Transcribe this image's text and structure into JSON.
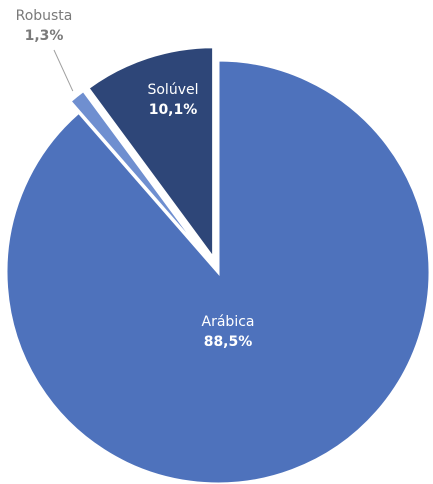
{
  "chart_data": {
    "type": "pie",
    "title": "",
    "slices": [
      {
        "label": "Arábica",
        "value": 88.5,
        "value_label": "88,5%",
        "color": "#4e72bc",
        "label_color": "#ffffff",
        "explode": false,
        "leader_line": false
      },
      {
        "label": "Robusta",
        "value": 1.3,
        "value_label": "1,3%",
        "color": "#6f8fd0",
        "label_color": "#7a7a7a",
        "explode": true,
        "leader_line": true
      },
      {
        "label": "Solúvel",
        "value": 10.1,
        "value_label": "10,1%",
        "color": "#2e4678",
        "label_color": "#ffffff",
        "explode": true,
        "leader_line": false
      }
    ]
  }
}
